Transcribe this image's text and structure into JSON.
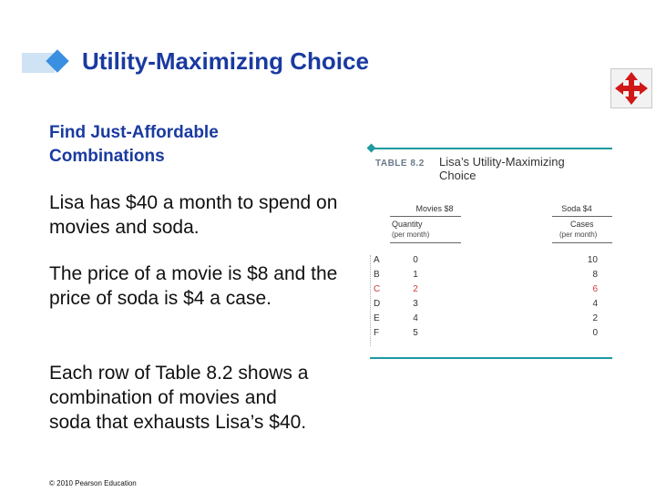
{
  "title": "Utility-Maximizing Choice",
  "subtitle": "Find Just-Affordable Combinations",
  "paragraphs": [
    "Lisa has $40 a month to spend on movies and soda.",
    "The price of a movie is $8 and the price of soda is $4 a case.",
    "Each row of Table 8.2 shows a combination of movies and soda that exhausts Lisa’s $40."
  ],
  "footer": "© 2010 Pearson Education",
  "nav_icon": "four-way-arrows-icon",
  "colors": {
    "title": "#1a3aa0",
    "accent": "#3a8fe0",
    "rule": "#1e9aa0",
    "highlight": "#d03a3a"
  },
  "table": {
    "label": "TABLE 8.2",
    "title": "Lisa’s Utility-Maximizing Choice",
    "movies_header": "Movies $8",
    "soda_header": "Soda $4",
    "movies_sub": "Quantity",
    "movies_unit": "(per month)",
    "soda_sub": "Cases",
    "soda_unit": "(per month)",
    "rows": [
      {
        "label": "A",
        "quantity": "0",
        "cases": "10",
        "highlight": false
      },
      {
        "label": "B",
        "quantity": "1",
        "cases": "8",
        "highlight": false
      },
      {
        "label": "C",
        "quantity": "2",
        "cases": "6",
        "highlight": true
      },
      {
        "label": "D",
        "quantity": "3",
        "cases": "4",
        "highlight": false
      },
      {
        "label": "E",
        "quantity": "4",
        "cases": "2",
        "highlight": false
      },
      {
        "label": "F",
        "quantity": "5",
        "cases": "0",
        "highlight": false
      }
    ]
  }
}
